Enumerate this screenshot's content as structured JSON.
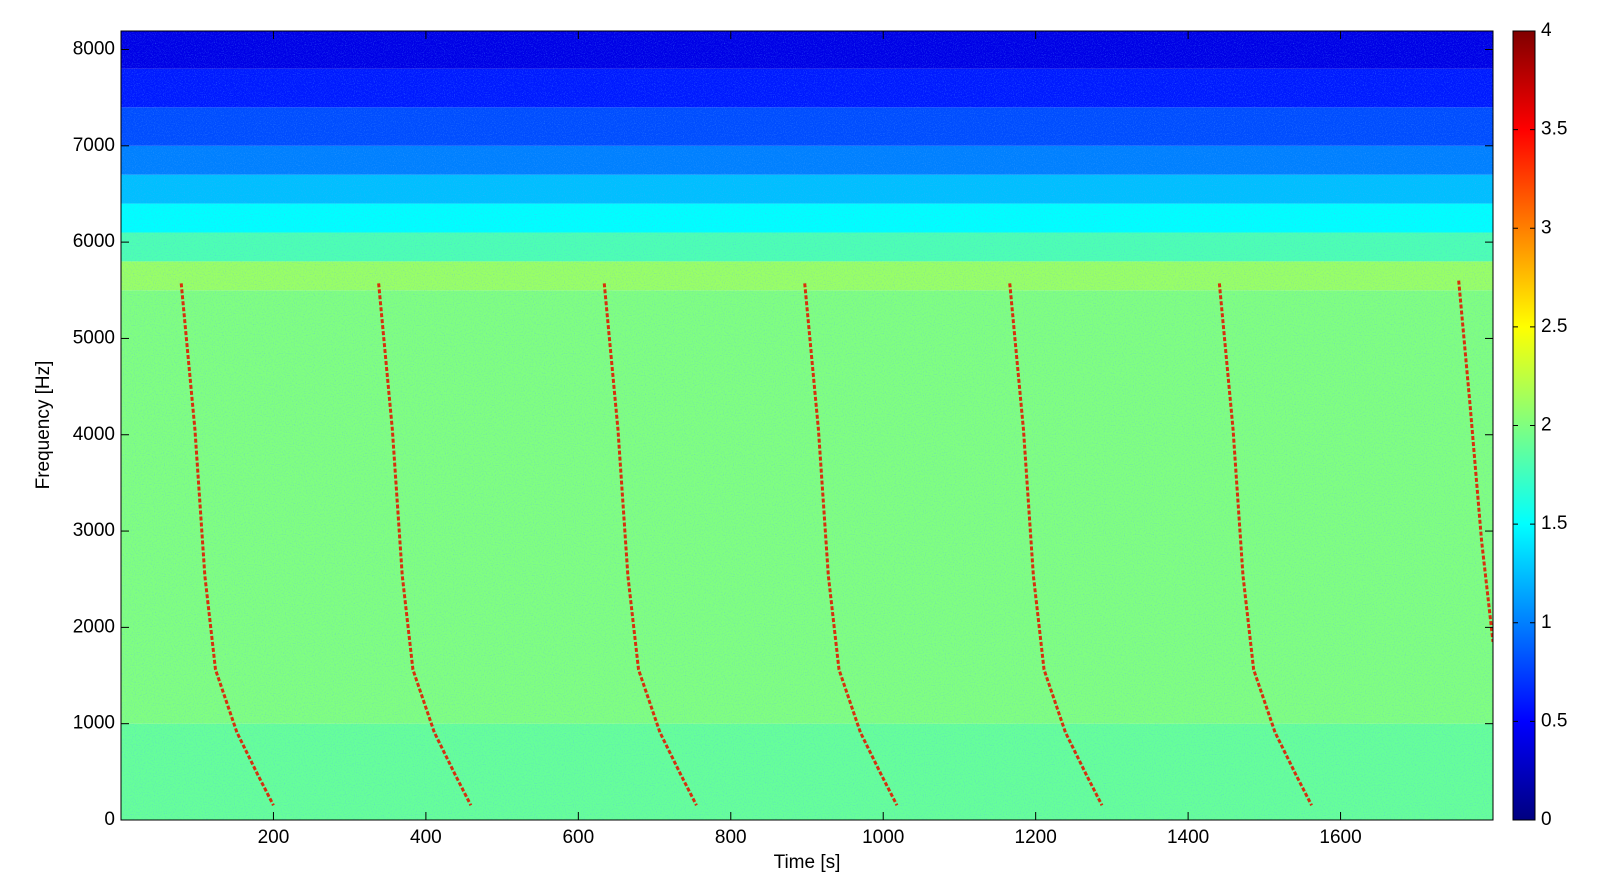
{
  "chart_data": {
    "type": "spectrogram",
    "xlabel": "Time [s]",
    "ylabel": "Frequency [Hz]",
    "xlim": [
      0,
      1800
    ],
    "xticks": [
      200,
      400,
      600,
      800,
      1000,
      1200,
      1400,
      1600
    ],
    "ylim": [
      0,
      8192
    ],
    "yticks": [
      0,
      1000,
      2000,
      3000,
      4000,
      5000,
      6000,
      7000,
      8000
    ],
    "colormap": "jet",
    "clim": [
      0,
      4
    ],
    "cticks": [
      0,
      0.5,
      1,
      1.5,
      2,
      2.5,
      3,
      3.5,
      4
    ],
    "background": {
      "band_edges": [
        0,
        1000,
        5500,
        5800,
        6100,
        6400,
        6700,
        7000,
        7400,
        7800,
        8192
      ],
      "values": [
        1.9,
        2.0,
        2.1,
        1.8,
        1.5,
        1.25,
        1.0,
        0.8,
        0.6,
        0.4
      ]
    },
    "series": [
      {
        "color": "#e01a00",
        "x": [
          79,
          97,
          110,
          124,
          152,
          179,
          200
        ],
        "values": [
          5572,
          4054,
          2537,
          1561,
          911,
          477,
          152
        ]
      },
      {
        "color": "#e01a00",
        "x": [
          338,
          356,
          369,
          383,
          411,
          438,
          459
        ],
        "values": [
          5572,
          4054,
          2537,
          1561,
          911,
          477,
          152
        ]
      },
      {
        "color": "#e01a00",
        "x": [
          634,
          652,
          665,
          679,
          707,
          734,
          755
        ],
        "values": [
          5572,
          4054,
          2537,
          1561,
          911,
          477,
          152
        ]
      },
      {
        "color": "#e01a00",
        "x": [
          897,
          915,
          928,
          942,
          970,
          997,
          1018
        ],
        "values": [
          5572,
          4054,
          2537,
          1561,
          911,
          477,
          152
        ]
      },
      {
        "color": "#e01a00",
        "x": [
          1166,
          1184,
          1197,
          1211,
          1239,
          1266,
          1287
        ],
        "values": [
          5572,
          4054,
          2537,
          1561,
          911,
          477,
          152
        ]
      },
      {
        "color": "#e01a00",
        "x": [
          1441,
          1459,
          1472,
          1486,
          1514,
          1541,
          1562
        ],
        "values": [
          5572,
          4054,
          2537,
          1561,
          911,
          477,
          152
        ]
      },
      {
        "color": "#e01a00",
        "x": [
          1755,
          1770,
          1785,
          1800
        ],
        "values": [
          5600,
          4300,
          2900,
          1850
        ]
      }
    ]
  }
}
